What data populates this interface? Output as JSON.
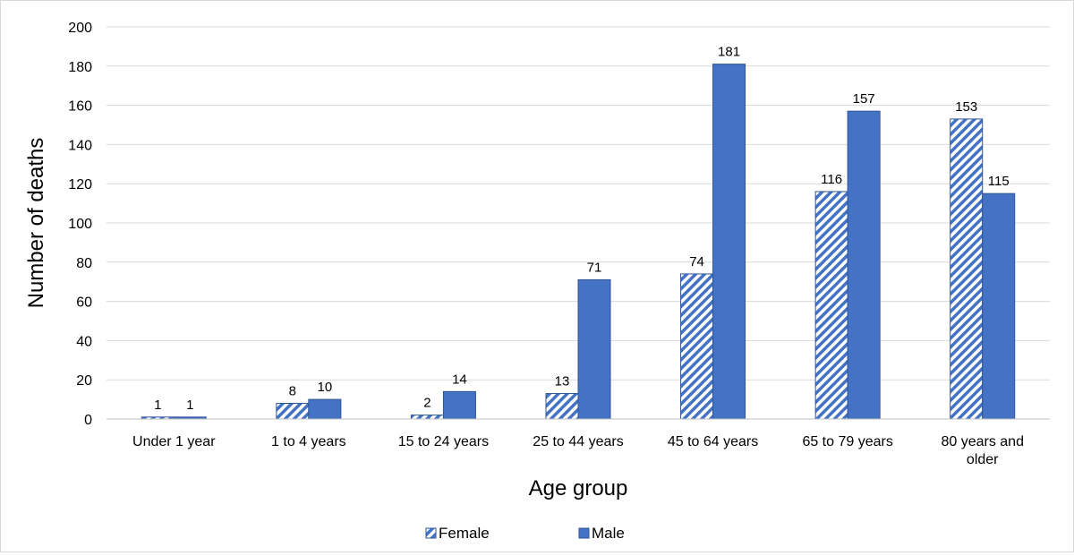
{
  "chart_data": {
    "type": "bar",
    "xlabel": "Age group",
    "ylabel": "Number of deaths",
    "ylim": [
      0,
      200
    ],
    "ytick_step": 20,
    "grid": true,
    "legend_position": "bottom",
    "categories": [
      [
        "Under 1 year"
      ],
      [
        "1 to 4 years"
      ],
      [
        "15 to 24 years"
      ],
      [
        "25 to 44 years"
      ],
      [
        "45 to 64 years"
      ],
      [
        "65 to 79 years"
      ],
      [
        "80 years and",
        "older"
      ]
    ],
    "series": [
      {
        "name": "Female",
        "values": [
          1,
          8,
          2,
          13,
          74,
          116,
          153
        ],
        "pattern": "diagonal-hatch",
        "color": "#4472C4"
      },
      {
        "name": "Male",
        "values": [
          1,
          10,
          14,
          71,
          181,
          157,
          115
        ],
        "pattern": "solid",
        "color": "#4472C4"
      }
    ]
  }
}
